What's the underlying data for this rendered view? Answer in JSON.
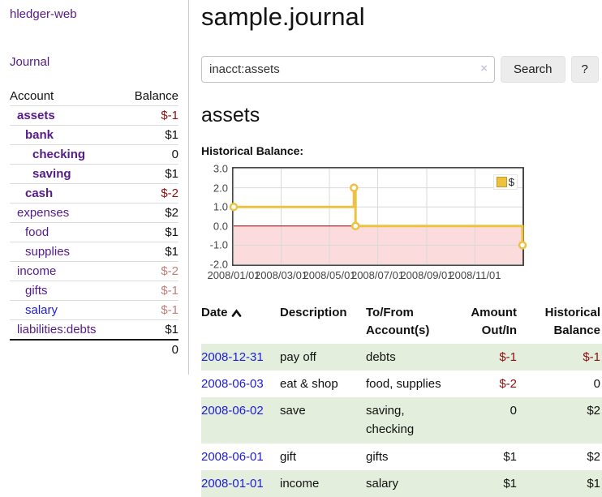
{
  "app": {
    "brand": "hledger-web"
  },
  "palette": {
    "link_purple": "#551a8b",
    "link_blue": "#1c1cdb",
    "negative_strong": "#8f0d0d",
    "negative_soft": "#c07d7d",
    "row_stripe_green": "#e3eedd",
    "chart_gold": "#edc240"
  },
  "sidebar": {
    "journal_link": "Journal",
    "accounts_table": {
      "col_account": "Account",
      "col_balance": "Balance"
    },
    "accounts": [
      {
        "name": "assets",
        "balance": "$-1"
      },
      {
        "name": "bank",
        "balance": "$1"
      },
      {
        "name": "checking",
        "balance": "0"
      },
      {
        "name": "saving",
        "balance": "$1"
      },
      {
        "name": "cash",
        "balance": "$-2"
      },
      {
        "name": "expenses",
        "balance": "$2"
      },
      {
        "name": "food",
        "balance": "$1"
      },
      {
        "name": "supplies",
        "balance": "$1"
      },
      {
        "name": "income",
        "balance": "$-2"
      },
      {
        "name": "gifts",
        "balance": "$-1"
      },
      {
        "name": "salary",
        "balance": "$-1"
      },
      {
        "name": "liabilities:debts",
        "balance": "$1"
      }
    ],
    "total": "0"
  },
  "main": {
    "title": "sample.journal",
    "search": {
      "query": "inacct:assets",
      "clear_icon": "×",
      "search_button": "Search",
      "help_button": "?"
    },
    "account_heading": "assets",
    "chart_title": "Historical Balance:"
  },
  "chart_data": {
    "type": "line",
    "step": true,
    "title": "Historical Balance",
    "x_range": [
      "2008-01-01",
      "2008-12-31"
    ],
    "ylim": [
      -2,
      3
    ],
    "y_ticks": [
      {
        "label": "3.0",
        "value": 3
      },
      {
        "label": "2.0",
        "value": 2
      },
      {
        "label": "1.0",
        "value": 1
      },
      {
        "label": "0.0",
        "value": 0
      },
      {
        "label": "-1.0",
        "value": -1
      },
      {
        "label": "-2.0",
        "value": -2
      }
    ],
    "x_ticks": [
      {
        "label": "2008/01/01",
        "date": "2008-01-01"
      },
      {
        "label": "2008/03/01",
        "date": "2008-03-01"
      },
      {
        "label": "2008/05/01",
        "date": "2008-05-01"
      },
      {
        "label": "2008/07/01",
        "date": "2008-07-01"
      },
      {
        "label": "2008/09/01",
        "date": "2008-09-01"
      },
      {
        "label": "2008/11/01",
        "date": "2008-11-01"
      }
    ],
    "series": [
      {
        "name": "$",
        "color": "#edc240",
        "points": [
          [
            "2008-01-01",
            1
          ],
          [
            "2008-06-01",
            2
          ],
          [
            "2008-06-03",
            0
          ],
          [
            "2008-12-31",
            -1
          ]
        ]
      }
    ],
    "legend": [
      {
        "label": "$",
        "color": "#edc240"
      }
    ],
    "legend_position": "top-right",
    "grid": true,
    "grid_color": "#d9d9d9",
    "negative_region_color": "#fbdbdb",
    "zero_line_color": "#8b0000"
  },
  "register": {
    "headers": {
      "date": "Date",
      "description": "Description",
      "account": "To/From Account(s)",
      "amount": "Amount Out/In",
      "balance": "Historical Balance"
    },
    "rows": [
      {
        "date": "2008-12-31",
        "description": "pay off",
        "account": "debts",
        "amount": "$-1",
        "balance": "$-1"
      },
      {
        "date": "2008-06-03",
        "description": "eat & shop",
        "account": "food, supplies",
        "amount": "$-2",
        "balance": "0"
      },
      {
        "date": "2008-06-02",
        "description": "save",
        "account": "saving, checking",
        "amount": "0",
        "balance": "$2"
      },
      {
        "date": "2008-06-01",
        "description": "gift",
        "account": "gifts",
        "amount": "$1",
        "balance": "$2"
      },
      {
        "date": "2008-01-01",
        "description": "income",
        "account": "salary",
        "amount": "$1",
        "balance": "$1"
      }
    ]
  }
}
